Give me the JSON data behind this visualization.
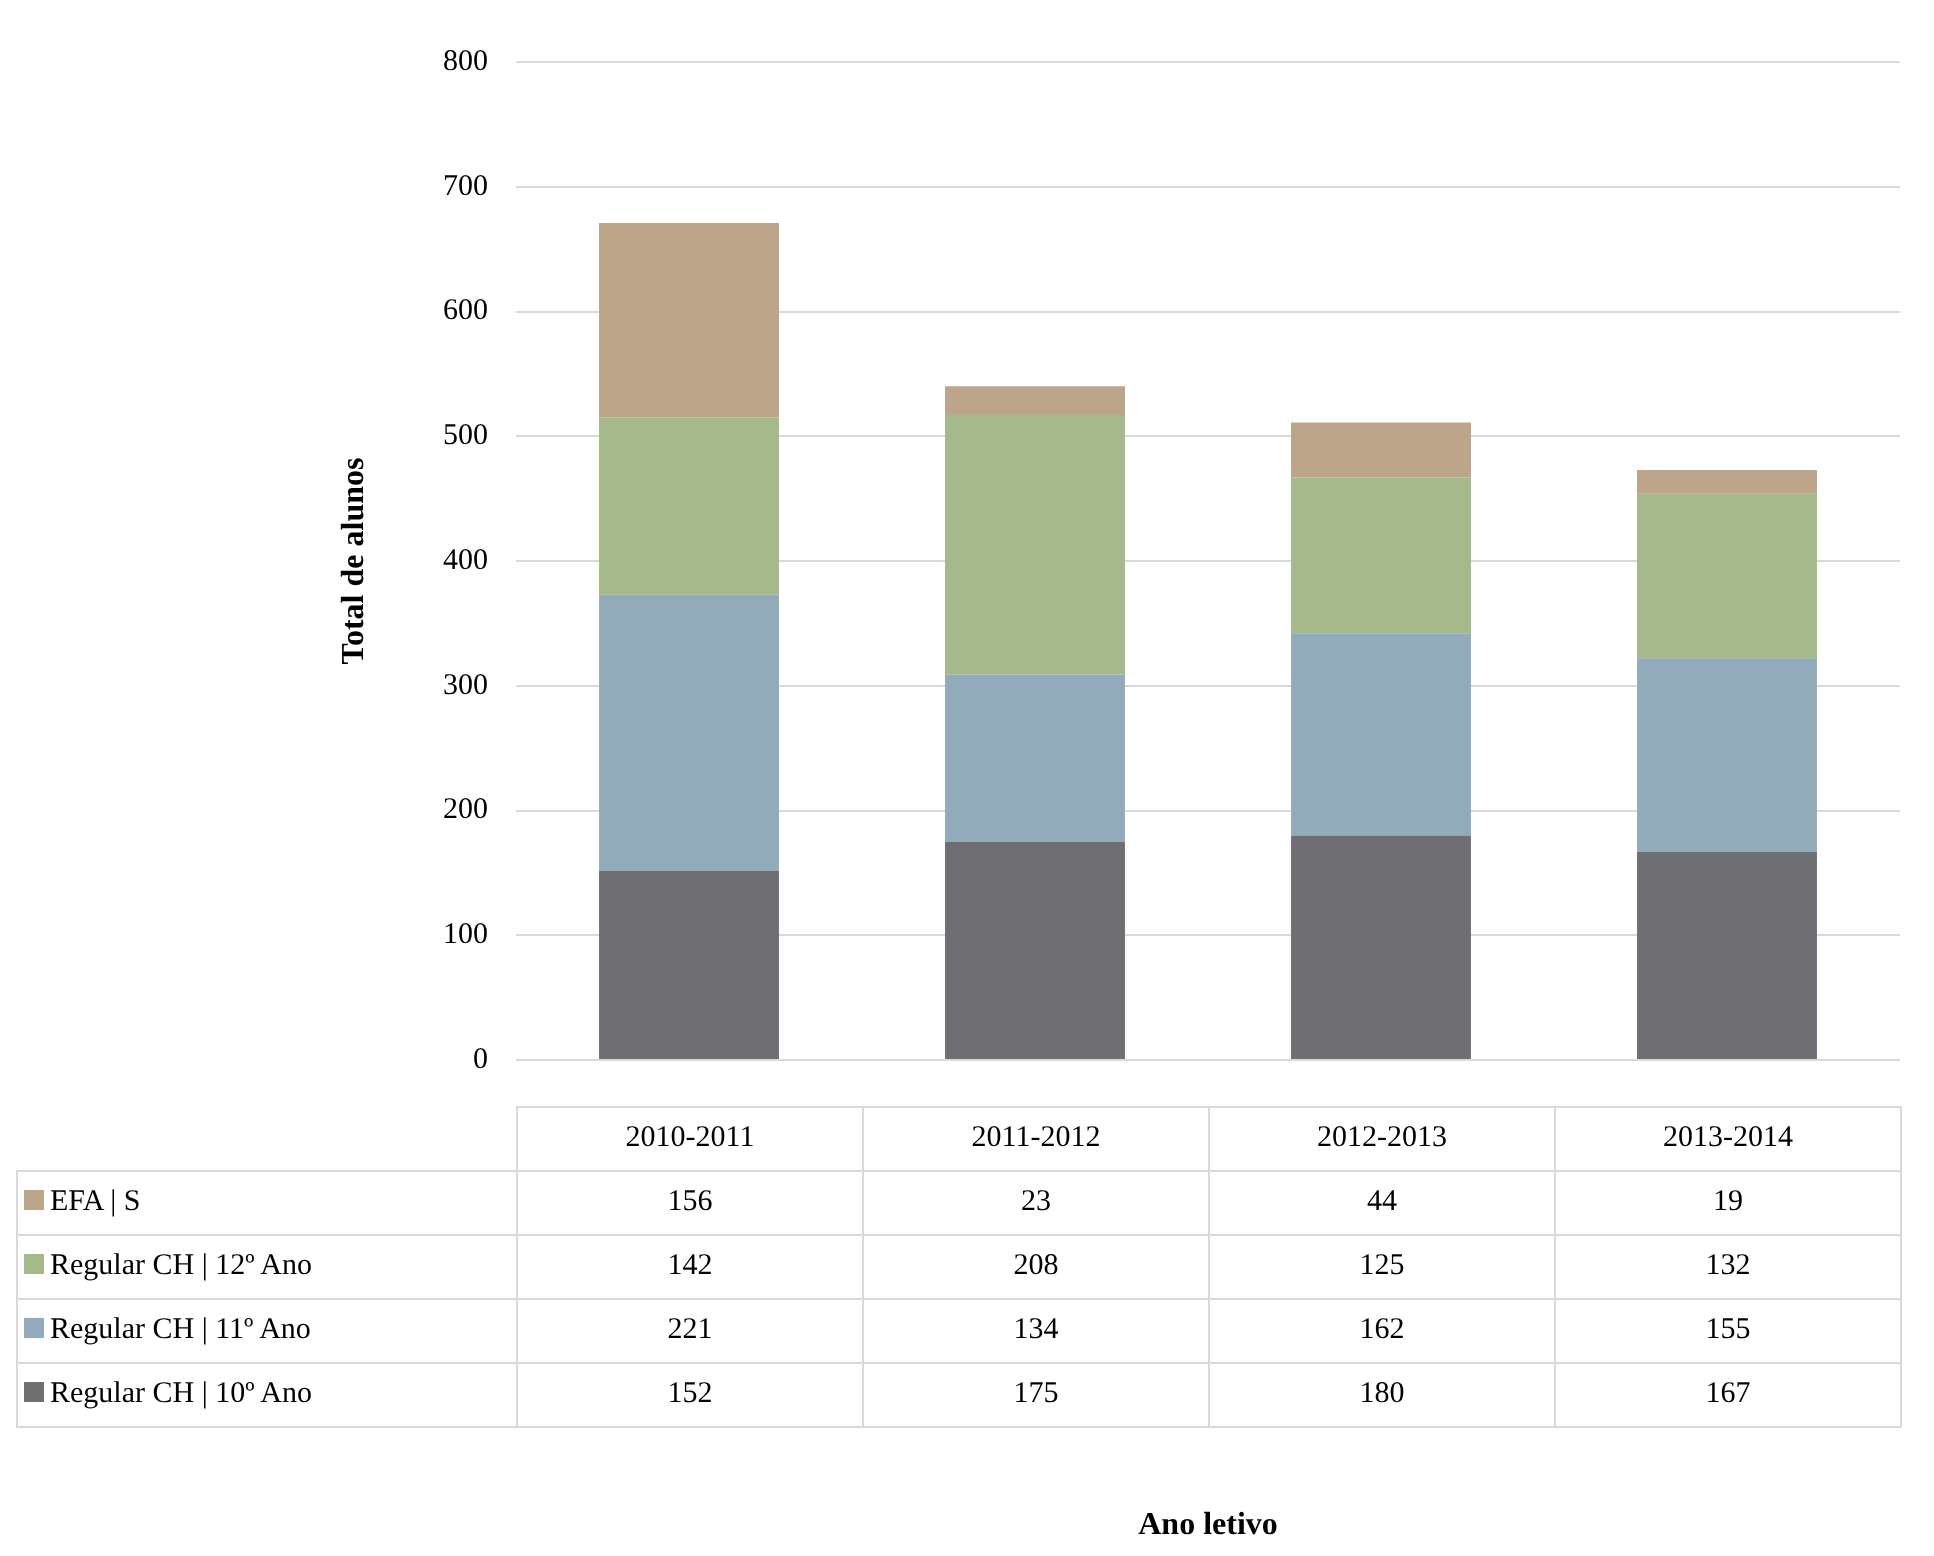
{
  "chart_data": {
    "type": "bar",
    "stacked": true,
    "annotations": [
      "Ano letivo"
    ],
    "ylabel": "Total de alunos",
    "categories": [
      "2010-2011",
      "2011-2012",
      "2012-2013",
      "2013-2014"
    ],
    "series": [
      {
        "name": "Regular CH | 10º Ano",
        "color": "#6f6e73",
        "values": [
          152,
          175,
          180,
          167
        ]
      },
      {
        "name": "Regular CH | 11º Ano",
        "color": "#92abbb",
        "values": [
          221,
          134,
          162,
          155
        ]
      },
      {
        "name": "Regular CH | 12º Ano",
        "color": "#a6b98a",
        "values": [
          142,
          208,
          125,
          132
        ]
      },
      {
        "name": "EFA | S",
        "color": "#bca58a",
        "values": [
          156,
          23,
          44,
          19
        ]
      }
    ],
    "ylim": [
      0,
      800
    ],
    "yticks": [
      0,
      100,
      200,
      300,
      400,
      500,
      600,
      700,
      800
    ],
    "grid": "y",
    "legend": "bottom",
    "data_labels": true
  }
}
